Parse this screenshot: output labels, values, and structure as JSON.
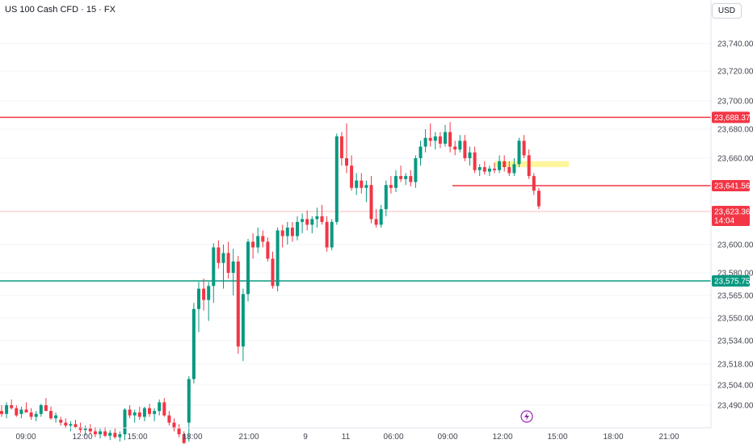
{
  "header": {
    "title": "US 100 Cash CFD · 15 · FX",
    "currency_button": "USD"
  },
  "colors": {
    "up": "#089981",
    "down": "#f23645",
    "resistance": "#f23645",
    "support": "#089981",
    "current_line": "#f7a8ae",
    "zone": "#fff59d",
    "event": "#9c27b0"
  },
  "event_icon": "lightning-bolt-icon",
  "chart_data": {
    "type": "candlestick",
    "title": "US 100 Cash CFD · 15 · FX",
    "y_ticks": [
      "23,740.00",
      "23,720.00",
      "23,700.00",
      "23,680.00",
      "23,660.00",
      "23,600.00",
      "23,580.00",
      "23,565.00",
      "23,550.00",
      "23,534.00",
      "23,518.00",
      "23,504.00",
      "23,490.00"
    ],
    "x_ticks": [
      "09:00",
      "12:00",
      "15:00",
      "18:00",
      "21:00",
      "9",
      "11",
      "06:00",
      "09:00",
      "12:00",
      "15:00",
      "18:00",
      "21:00"
    ],
    "levels": [
      {
        "price": 23688.37,
        "label": "23,688.37",
        "kind": "resistance"
      },
      {
        "price": 23641.56,
        "label": "23,641.56",
        "kind": "intraday"
      },
      {
        "price": 23575.75,
        "label": "23,575.75",
        "kind": "support"
      }
    ],
    "current_price": {
      "price": 23623.36,
      "label": "23,623.36",
      "countdown": "14:04"
    },
    "zone": {
      "top": 23658,
      "bottom": 23654
    },
    "candles": [
      [
        23486,
        23490,
        23482,
        23484
      ],
      [
        23484,
        23492,
        23481,
        23490
      ],
      [
        23490,
        23494,
        23487,
        23488
      ],
      [
        23488,
        23490,
        23482,
        23483
      ],
      [
        23484,
        23489,
        23481,
        23487
      ],
      [
        23487,
        23492,
        23485,
        23485
      ],
      [
        23485,
        23488,
        23480,
        23482
      ],
      [
        23482,
        23486,
        23479,
        23484
      ],
      [
        23484,
        23491,
        23482,
        23490
      ],
      [
        23490,
        23495,
        23487,
        23486
      ],
      [
        23486,
        23489,
        23480,
        23481
      ],
      [
        23481,
        23485,
        23478,
        23483
      ],
      [
        23480,
        23482,
        23476,
        23478
      ],
      [
        23478,
        23481,
        23474,
        23476
      ],
      [
        23476,
        23479,
        23472,
        23477
      ],
      [
        23477,
        23480,
        23474,
        23475
      ],
      [
        23475,
        23478,
        23471,
        23473
      ],
      [
        23473,
        23476,
        23469,
        23474
      ],
      [
        23474,
        23477,
        23470,
        23472
      ],
      [
        23472,
        23475,
        23468,
        23470
      ],
      [
        23470,
        23474,
        23467,
        23472
      ],
      [
        23472,
        23475,
        23468,
        23469
      ],
      [
        23469,
        23473,
        23466,
        23471
      ],
      [
        23471,
        23474,
        23467,
        23468
      ],
      [
        23468,
        23472,
        23465,
        23470
      ],
      [
        23470,
        23488,
        23466,
        23487
      ],
      [
        23487,
        23490,
        23481,
        23483
      ],
      [
        23483,
        23487,
        23478,
        23485
      ],
      [
        23485,
        23489,
        23480,
        23482
      ],
      [
        23482,
        23489,
        23479,
        23488
      ],
      [
        23488,
        23491,
        23482,
        23484
      ],
      [
        23484,
        23488,
        23479,
        23486
      ],
      [
        23486,
        23494,
        23483,
        23492
      ],
      [
        23492,
        23495,
        23482,
        23483
      ],
      [
        23483,
        23486,
        23476,
        23478
      ],
      [
        23478,
        23481,
        23472,
        23474
      ],
      [
        23474,
        23477,
        23468,
        23470
      ],
      [
        23470,
        23472,
        23462,
        23464
      ],
      [
        23478,
        23510,
        23465,
        23508
      ],
      [
        23508,
        23560,
        23505,
        23556
      ],
      [
        23556,
        23575,
        23540,
        23570
      ],
      [
        23570,
        23577,
        23555,
        23562
      ],
      [
        23562,
        23575,
        23548,
        23572
      ],
      [
        23572,
        23601,
        23560,
        23598
      ],
      [
        23598,
        23603,
        23583,
        23587
      ],
      [
        23587,
        23600,
        23570,
        23594
      ],
      [
        23594,
        23602,
        23577,
        23580
      ],
      [
        23580,
        23597,
        23565,
        23588
      ],
      [
        23588,
        23592,
        23525,
        23530
      ],
      [
        23530,
        23570,
        23520,
        23566
      ],
      [
        23566,
        23604,
        23561,
        23602
      ],
      [
        23602,
        23608,
        23590,
        23598
      ],
      [
        23598,
        23612,
        23594,
        23606
      ],
      [
        23606,
        23610,
        23598,
        23602
      ],
      [
        23602,
        23605,
        23588,
        23590
      ],
      [
        23590,
        23595,
        23570,
        23572
      ],
      [
        23572,
        23612,
        23568,
        23610
      ],
      [
        23610,
        23614,
        23598,
        23606
      ],
      [
        23606,
        23616,
        23600,
        23612
      ],
      [
        23612,
        23616,
        23602,
        23606
      ],
      [
        23606,
        23620,
        23603,
        23616
      ],
      [
        23616,
        23622,
        23608,
        23618
      ],
      [
        23618,
        23624,
        23610,
        23614
      ],
      [
        23614,
        23620,
        23608,
        23618
      ],
      [
        23618,
        23626,
        23612,
        23620
      ],
      [
        23620,
        23628,
        23614,
        23616
      ],
      [
        23616,
        23620,
        23595,
        23598
      ],
      [
        23598,
        23618,
        23596,
        23616
      ],
      [
        23616,
        23677,
        23614,
        23675
      ],
      [
        23675,
        23678,
        23655,
        23660
      ],
      [
        23660,
        23684,
        23650,
        23655
      ],
      [
        23655,
        23662,
        23638,
        23640
      ],
      [
        23640,
        23650,
        23635,
        23645
      ],
      [
        23645,
        23650,
        23636,
        23640
      ],
      [
        23640,
        23645,
        23630,
        23642
      ],
      [
        23642,
        23648,
        23615,
        23618
      ],
      [
        23618,
        23625,
        23612,
        23614
      ],
      [
        23614,
        23628,
        23612,
        23625
      ],
      [
        23625,
        23645,
        23620,
        23642
      ],
      [
        23642,
        23648,
        23636,
        23640
      ],
      [
        23640,
        23652,
        23637,
        23648
      ],
      [
        23648,
        23655,
        23644,
        23646
      ],
      [
        23646,
        23650,
        23642,
        23648
      ],
      [
        23648,
        23652,
        23641,
        23644
      ],
      [
        23644,
        23662,
        23640,
        23660
      ],
      [
        23660,
        23672,
        23655,
        23668
      ],
      [
        23668,
        23680,
        23664,
        23674
      ],
      [
        23674,
        23684,
        23668,
        23672
      ],
      [
        23672,
        23678,
        23666,
        23675
      ],
      [
        23675,
        23678,
        23667,
        23670
      ],
      [
        23670,
        23683,
        23668,
        23678
      ],
      [
        23678,
        23685,
        23664,
        23668
      ],
      [
        23668,
        23672,
        23662,
        23666
      ],
      [
        23666,
        23676,
        23664,
        23672
      ],
      [
        23672,
        23676,
        23658,
        23660
      ],
      [
        23660,
        23668,
        23655,
        23664
      ],
      [
        23664,
        23668,
        23650,
        23652
      ],
      [
        23652,
        23656,
        23648,
        23654
      ],
      [
        23654,
        23658,
        23649,
        23651
      ],
      [
        23651,
        23655,
        23648,
        23653
      ],
      [
        23653,
        23657,
        23650,
        23652
      ],
      [
        23652,
        23662,
        23650,
        23658
      ],
      [
        23658,
        23662,
        23651,
        23654
      ],
      [
        23654,
        23658,
        23648,
        23650
      ],
      [
        23650,
        23660,
        23648,
        23656
      ],
      [
        23656,
        23674,
        23654,
        23672
      ],
      [
        23672,
        23676,
        23660,
        23662
      ],
      [
        23662,
        23666,
        23646,
        23648
      ],
      [
        23648,
        23650,
        23635,
        23638
      ],
      [
        23638,
        23640,
        23625,
        23627
      ]
    ]
  }
}
